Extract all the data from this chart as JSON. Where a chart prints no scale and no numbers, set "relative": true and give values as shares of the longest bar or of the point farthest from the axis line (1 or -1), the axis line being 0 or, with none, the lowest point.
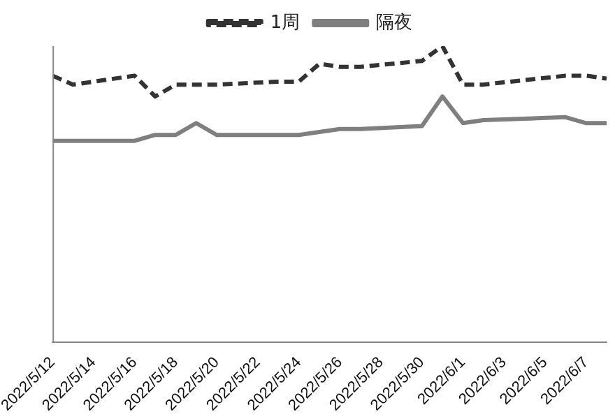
{
  "chart_data": {
    "type": "line",
    "relative": true,
    "legend": "top",
    "grid": false,
    "marker": "none",
    "x": [
      "2022-05-12",
      "2022-05-13",
      "2022-05-16",
      "2022-05-17",
      "2022-05-18",
      "2022-05-19",
      "2022-05-20",
      "2022-05-23",
      "2022-05-24",
      "2022-05-25",
      "2022-05-26",
      "2022-05-27",
      "2022-05-30",
      "2022-05-31",
      "2022-06-01",
      "2022-06-02",
      "2022-06-06",
      "2022-06-07",
      "2022-06-08"
    ],
    "xlim": [
      "2022-05-12",
      "2022-06-08"
    ],
    "xticks": [
      {
        "value": "2022-05-12",
        "label": "2022/5/12"
      },
      {
        "value": "2022-05-14",
        "label": "2022/5/14"
      },
      {
        "value": "2022-05-16",
        "label": "2022/5/16"
      },
      {
        "value": "2022-05-18",
        "label": "2022/5/18"
      },
      {
        "value": "2022-05-20",
        "label": "2022/5/20"
      },
      {
        "value": "2022-05-22",
        "label": "2022/5/22"
      },
      {
        "value": "2022-05-24",
        "label": "2022/5/24"
      },
      {
        "value": "2022-05-26",
        "label": "2022/5/26"
      },
      {
        "value": "2022-05-28",
        "label": "2022/5/28"
      },
      {
        "value": "2022-05-30",
        "label": "2022/5/30"
      },
      {
        "value": "2022-06-01",
        "label": "2022/6/1"
      },
      {
        "value": "2022-06-03",
        "label": "2022/6/3"
      },
      {
        "value": "2022-06-05",
        "label": "2022/6/5"
      },
      {
        "value": "2022-06-07",
        "label": "2022/6/7"
      }
    ],
    "series": [
      {
        "name": "1周",
        "color": "#333333",
        "line_style": "dashed",
        "values": [
          0.9,
          0.87,
          0.9,
          0.83,
          0.87,
          0.87,
          0.87,
          0.88,
          0.88,
          0.94,
          0.93,
          0.93,
          0.95,
          1,
          0.87,
          0.87,
          0.9,
          0.9,
          0.89
        ]
      },
      {
        "name": "隔夜",
        "color": "#7f7f7f",
        "line_style": "solid",
        "values": [
          0.68,
          0.68,
          0.68,
          0.7,
          0.7,
          0.74,
          0.7,
          0.7,
          0.7,
          0.71,
          0.72,
          0.72,
          0.73,
          0.83,
          0.74,
          0.75,
          0.76,
          0.74,
          0.74
        ]
      }
    ]
  }
}
